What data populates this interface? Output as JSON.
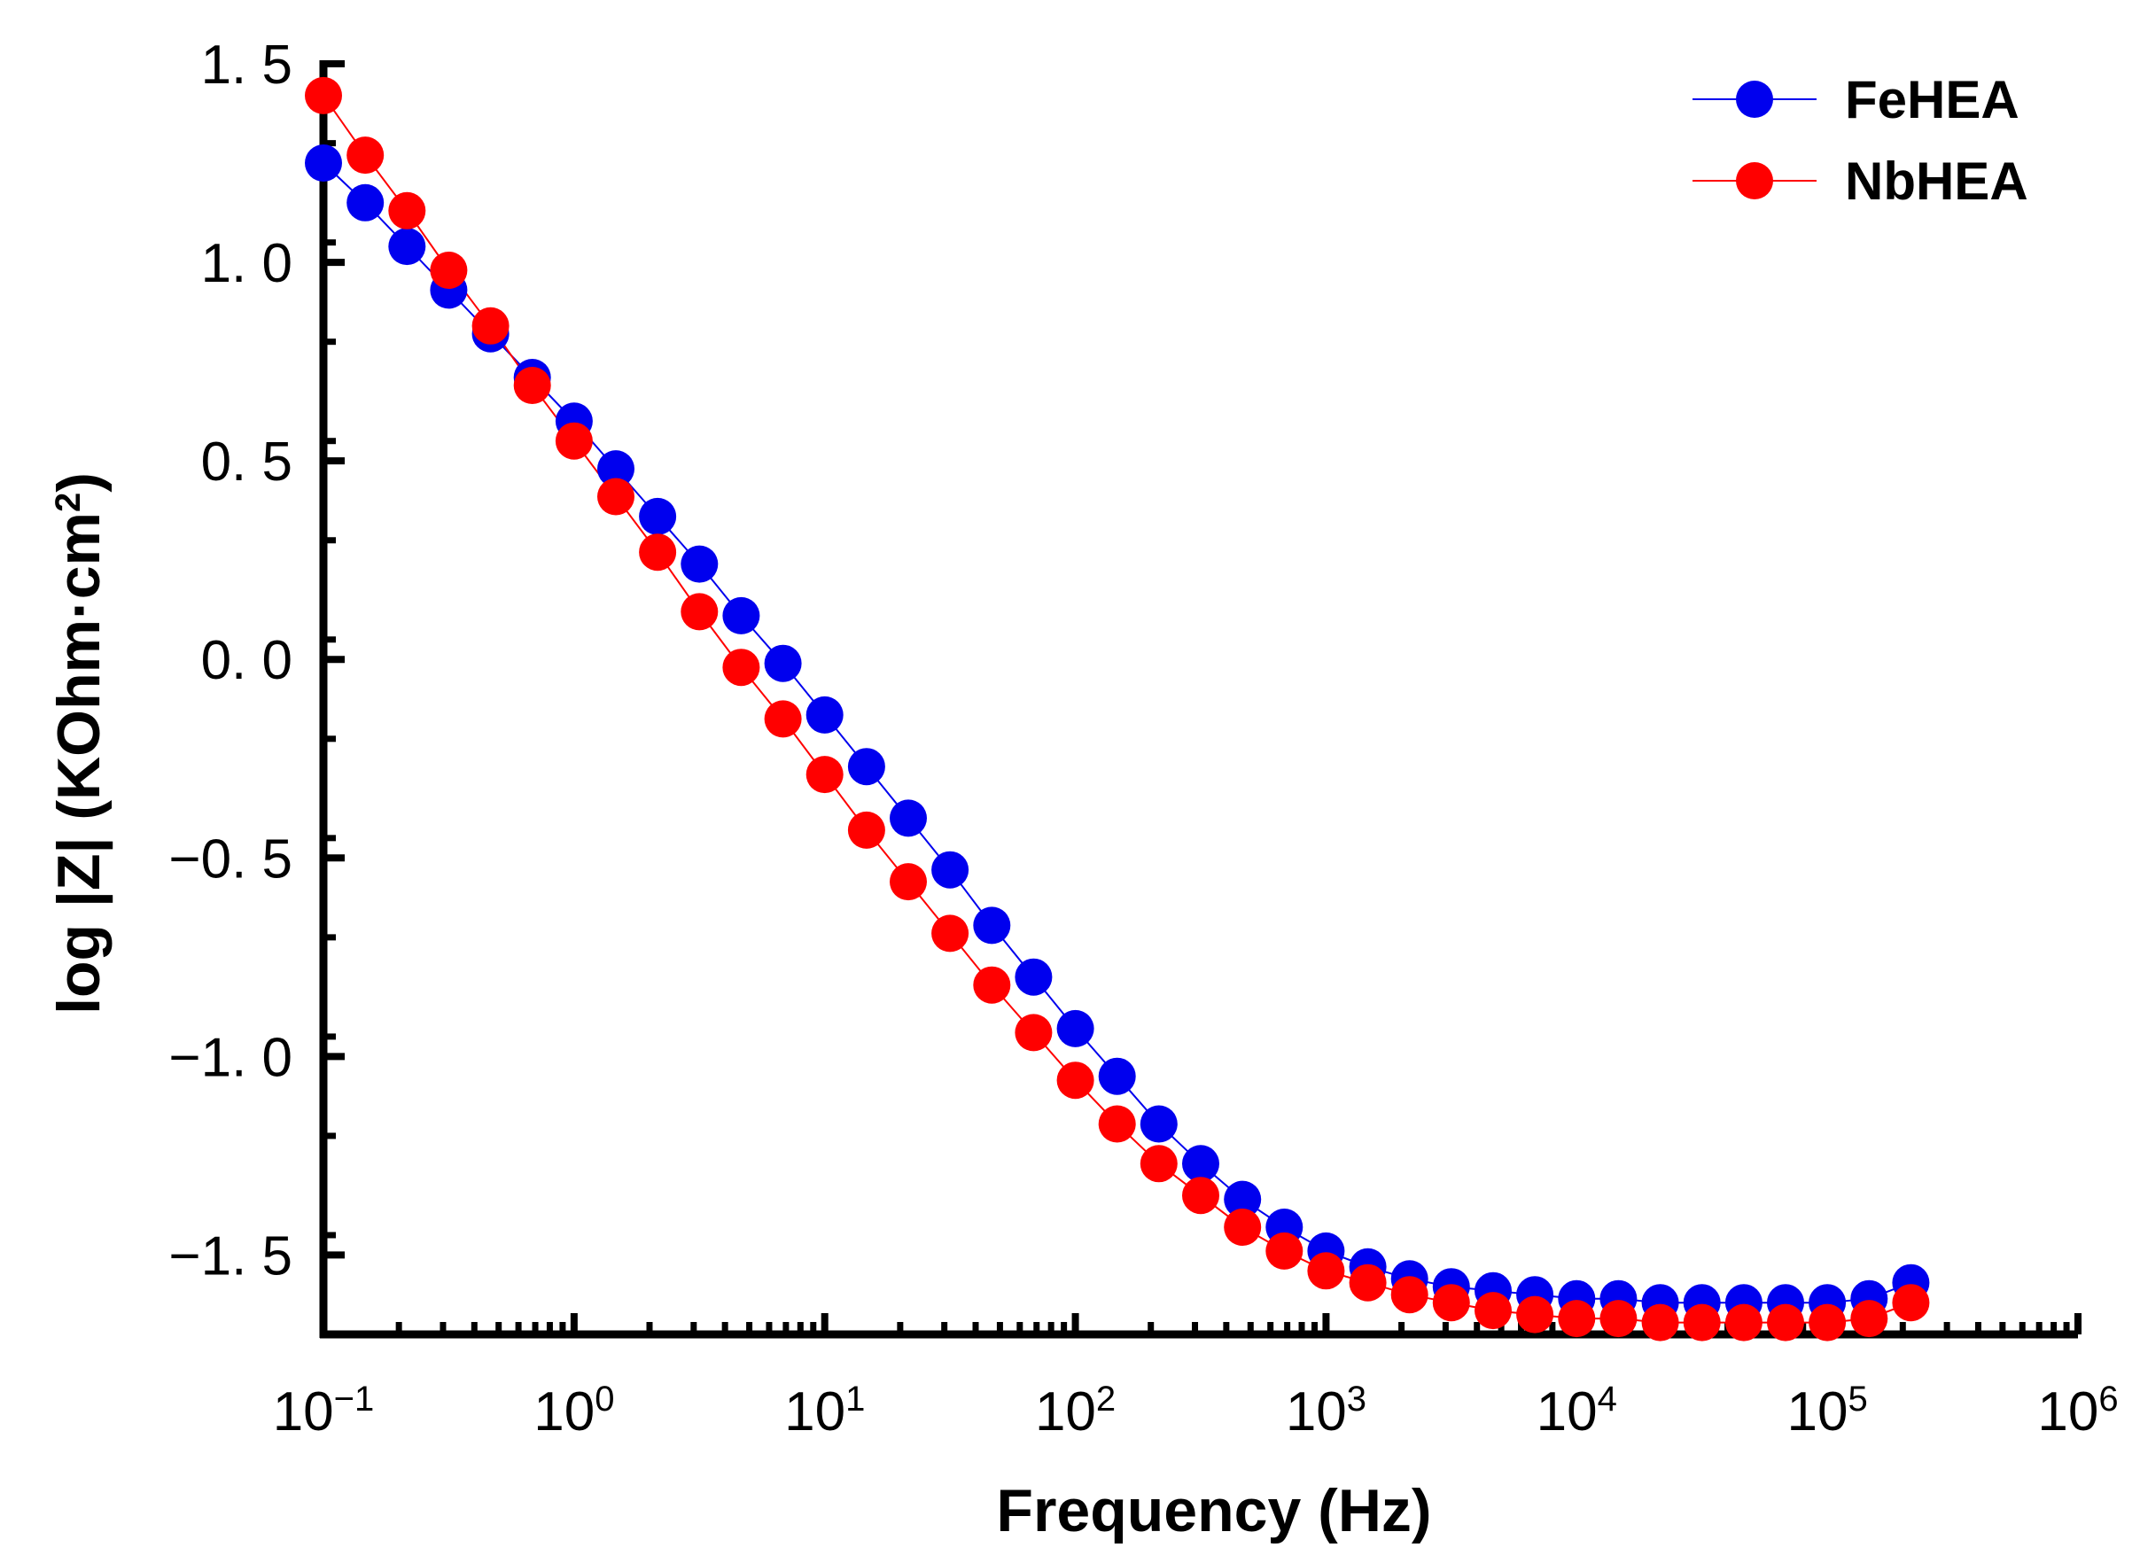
{
  "chart_data": {
    "type": "scatter",
    "title": "",
    "xlabel": "Frequency (Hz)",
    "ylabel": "log  |Z| (KOhm·cm",
    "ylabel_sup": "2",
    "ylabel_end": ")",
    "xscale": "log",
    "xlim": [
      0.1,
      1000000
    ],
    "ylim": [
      -1.7,
      1.5
    ],
    "x_ticks": [
      {
        "base": "10",
        "exp": "−1",
        "value": 0.1
      },
      {
        "base": "10",
        "exp": "0",
        "value": 1
      },
      {
        "base": "10",
        "exp": "1",
        "value": 10
      },
      {
        "base": "10",
        "exp": "2",
        "value": 100
      },
      {
        "base": "10",
        "exp": "3",
        "value": 1000
      },
      {
        "base": "10",
        "exp": "4",
        "value": 10000
      },
      {
        "base": "10",
        "exp": "5",
        "value": 100000
      },
      {
        "base": "10",
        "exp": "6",
        "value": 1000000
      }
    ],
    "y_ticks": [
      {
        "label": "1. 5",
        "value": 1.5
      },
      {
        "label": "1. 0",
        "value": 1.0
      },
      {
        "label": "0. 5",
        "value": 0.5
      },
      {
        "label": "0. 0",
        "value": 0.0
      },
      {
        "label": "−0. 5",
        "value": -0.5
      },
      {
        "label": "−1. 0",
        "value": -1.0
      },
      {
        "label": "−1. 5",
        "value": -1.5
      }
    ],
    "legend_position": "top-right",
    "x": [
      0.1,
      0.1468,
      0.2154,
      0.3162,
      0.4642,
      0.6813,
      1.0,
      1.468,
      2.154,
      3.162,
      4.642,
      6.813,
      10.0,
      14.68,
      21.54,
      31.62,
      46.42,
      68.13,
      100.0,
      146.8,
      215.4,
      316.2,
      464.2,
      681.3,
      1000.0,
      1468,
      2154,
      3162,
      4642,
      6813,
      10000,
      14678,
      21544,
      31623,
      46416,
      68129,
      100000,
      146780,
      215443
    ],
    "series": [
      {
        "name": "FeHEA",
        "color": "#0000ee",
        "values": [
          1.25,
          1.15,
          1.04,
          0.93,
          0.82,
          0.71,
          0.6,
          0.48,
          0.36,
          0.24,
          0.11,
          -0.01,
          -0.14,
          -0.27,
          -0.4,
          -0.53,
          -0.67,
          -0.8,
          -0.93,
          -1.05,
          -1.17,
          -1.27,
          -1.36,
          -1.43,
          -1.49,
          -1.53,
          -1.56,
          -1.58,
          -1.59,
          -1.6,
          -1.61,
          -1.61,
          -1.62,
          -1.62,
          -1.62,
          -1.62,
          -1.62,
          -1.61,
          -1.57
        ]
      },
      {
        "name": "NbHEA",
        "color": "#ff0000",
        "values": [
          1.42,
          1.27,
          1.13,
          0.98,
          0.84,
          0.69,
          0.55,
          0.41,
          0.27,
          0.12,
          -0.02,
          -0.15,
          -0.29,
          -0.43,
          -0.56,
          -0.69,
          -0.82,
          -0.94,
          -1.06,
          -1.17,
          -1.27,
          -1.35,
          -1.43,
          -1.49,
          -1.54,
          -1.57,
          -1.6,
          -1.62,
          -1.64,
          -1.65,
          -1.66,
          -1.66,
          -1.67,
          -1.67,
          -1.67,
          -1.67,
          -1.67,
          -1.66,
          -1.62
        ]
      }
    ]
  }
}
